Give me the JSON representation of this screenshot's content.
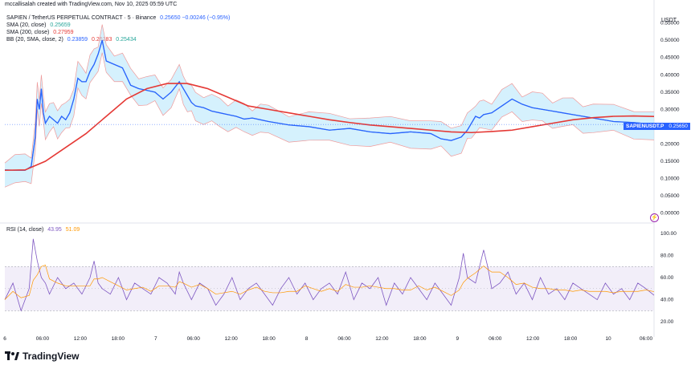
{
  "header": {
    "creator_line": "mccallisalah created with TradingView.com, Nov 10, 2025 05:59 UTC",
    "currency": "USDT"
  },
  "legend": {
    "symbol": "SAPIEN / TetherUS PERPETUAL CONTRACT · 5 · Binance",
    "symbol_values": "0.25650  −0.00246 (−0.95%)",
    "sma20_label": "SMA (20, close)",
    "sma20_value": "0.25659",
    "sma200_label": "SMA (200, close)",
    "sma200_value": "0.27959",
    "bb_label": "BB (20, SMA, close, 2)",
    "bb_values": [
      "0.23859",
      "0.26283",
      "0.25434"
    ]
  },
  "rsi_legend": {
    "label": "RSI (14, close)",
    "value1": "43.95",
    "value2": "51.09"
  },
  "price_tag": {
    "symbol": "SAPIENUSDT.P",
    "value": "0.25650"
  },
  "bolt_icon": "⚡",
  "footer": {
    "brand": "TradingView"
  },
  "colors": {
    "price": "#2962ff",
    "sma20": "#26a69a",
    "sma200": "#e53935",
    "bb_fill": "#b3e5fc",
    "bb_band": "#ef9a9a",
    "rsi": "#7e57c2",
    "rsi_ma": "#ff9800",
    "rsi_band": "#ede7f6"
  },
  "chart_data": [
    {
      "type": "line",
      "title": "SAPIEN / TetherUS PERPETUAL CONTRACT · 5 · Binance",
      "ylabel": "USDT",
      "ylim": [
        -0.01,
        0.57
      ],
      "y_ticks": [
        "0.55000",
        "0.50000",
        "0.45000",
        "0.40000",
        "0.35000",
        "0.30000",
        "0.25000",
        "0.20000",
        "0.15000",
        "0.10000",
        "0.05000",
        "0.00000"
      ],
      "x_ticks": [
        "6",
        "06:00",
        "12:00",
        "18:00",
        "7",
        "06:00",
        "12:00",
        "18:00",
        "8",
        "06:00",
        "12:00",
        "18:00",
        "9",
        "06:00",
        "12:00",
        "18:00",
        "10",
        "06:00"
      ],
      "x_range": [
        0,
        320
      ],
      "series": [
        {
          "name": "SAPIEN / TetherUS PERPETUAL CONTRACT",
          "x": [
            0,
            5,
            10,
            13,
            15,
            16,
            17,
            18,
            19,
            20,
            22,
            24,
            26,
            28,
            30,
            32,
            34,
            36,
            38,
            40,
            42,
            44,
            46,
            48,
            50,
            54,
            58,
            62,
            66,
            70,
            74,
            78,
            82,
            86,
            88,
            90,
            92,
            94,
            98,
            102,
            106,
            110,
            114,
            118,
            122,
            126,
            130,
            140,
            150,
            160,
            170,
            180,
            190,
            200,
            210,
            215,
            220,
            225,
            228,
            230,
            232,
            234,
            236,
            240,
            245,
            250,
            255,
            260,
            265,
            270,
            275,
            280,
            285,
            290,
            300,
            310,
            320
          ],
          "values": [
            0.125,
            0.124,
            0.124,
            0.135,
            0.22,
            0.33,
            0.3,
            0.36,
            0.29,
            0.26,
            0.28,
            0.27,
            0.26,
            0.28,
            0.27,
            0.29,
            0.33,
            0.39,
            0.38,
            0.38,
            0.41,
            0.43,
            0.46,
            0.5,
            0.44,
            0.43,
            0.42,
            0.37,
            0.36,
            0.355,
            0.35,
            0.33,
            0.35,
            0.38,
            0.36,
            0.34,
            0.32,
            0.31,
            0.305,
            0.295,
            0.29,
            0.285,
            0.28,
            0.272,
            0.275,
            0.27,
            0.265,
            0.255,
            0.25,
            0.24,
            0.245,
            0.235,
            0.23,
            0.235,
            0.23,
            0.215,
            0.21,
            0.22,
            0.24,
            0.26,
            0.28,
            0.275,
            0.285,
            0.29,
            0.31,
            0.33,
            0.315,
            0.305,
            0.3,
            0.295,
            0.29,
            0.285,
            0.28,
            0.275,
            0.265,
            0.262,
            0.2565
          ]
        },
        {
          "name": "SMA (200, close)",
          "x": [
            0,
            10,
            20,
            30,
            40,
            50,
            60,
            70,
            80,
            90,
            100,
            110,
            120,
            130,
            140,
            150,
            160,
            170,
            180,
            190,
            200,
            210,
            220,
            230,
            240,
            250,
            260,
            270,
            280,
            290,
            300,
            310,
            320
          ],
          "values": [
            0.124,
            0.125,
            0.15,
            0.19,
            0.23,
            0.28,
            0.33,
            0.36,
            0.375,
            0.375,
            0.36,
            0.335,
            0.31,
            0.3,
            0.29,
            0.28,
            0.27,
            0.262,
            0.255,
            0.25,
            0.245,
            0.24,
            0.235,
            0.233,
            0.236,
            0.24,
            0.25,
            0.26,
            0.27,
            0.276,
            0.28,
            0.281,
            0.2796
          ]
        }
      ]
    },
    {
      "type": "line",
      "title": "RSI (14, close)",
      "ylim": [
        15,
        105
      ],
      "y_ticks": [
        "100.00",
        "80.00",
        "60.00",
        "40.00",
        "20.00"
      ],
      "band": [
        30,
        70
      ],
      "x_range": [
        0,
        320
      ],
      "series": [
        {
          "name": "RSI (14, close)",
          "x": [
            0,
            4,
            8,
            12,
            14,
            16,
            18,
            20,
            22,
            26,
            30,
            34,
            38,
            42,
            44,
            46,
            48,
            52,
            56,
            60,
            64,
            68,
            72,
            76,
            80,
            84,
            86,
            88,
            92,
            96,
            100,
            104,
            108,
            112,
            116,
            120,
            124,
            128,
            132,
            136,
            140,
            144,
            148,
            152,
            156,
            160,
            164,
            168,
            172,
            176,
            180,
            184,
            188,
            192,
            196,
            200,
            204,
            208,
            212,
            216,
            220,
            224,
            226,
            228,
            232,
            236,
            238,
            240,
            244,
            248,
            252,
            256,
            260,
            264,
            268,
            272,
            276,
            280,
            284,
            288,
            292,
            296,
            300,
            304,
            308,
            312,
            316,
            320
          ],
          "values": [
            40,
            55,
            30,
            50,
            95,
            75,
            60,
            55,
            45,
            60,
            50,
            55,
            45,
            60,
            75,
            55,
            50,
            45,
            60,
            40,
            55,
            50,
            45,
            60,
            55,
            45,
            65,
            55,
            40,
            55,
            50,
            35,
            45,
            60,
            40,
            50,
            55,
            45,
            35,
            50,
            60,
            45,
            55,
            40,
            50,
            55,
            45,
            65,
            40,
            55,
            50,
            60,
            35,
            55,
            45,
            60,
            50,
            40,
            55,
            45,
            35,
            60,
            82,
            60,
            55,
            85,
            70,
            50,
            55,
            65,
            45,
            55,
            40,
            60,
            45,
            50,
            40,
            55,
            50,
            45,
            40,
            55,
            45,
            50,
            40,
            55,
            50,
            43.95
          ]
        }
      ]
    }
  ]
}
